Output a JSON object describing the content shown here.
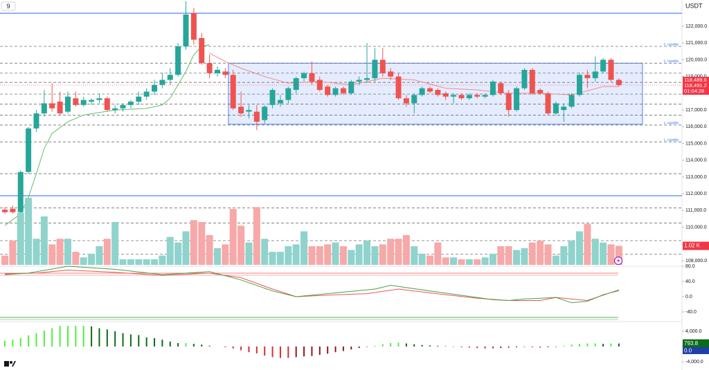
{
  "chart_data": [
    {
      "type": "candlestick",
      "title": "9",
      "currency": "USDT",
      "colors": {
        "up": "#26a69a",
        "down": "#ef5350"
      },
      "ylim": [
        107670,
        123570
      ],
      "yticks": [
        {
          "value": 122000,
          "label": "122,000.0"
        },
        {
          "value": 121000,
          "label": "121,000.0"
        },
        {
          "value": 120000,
          "label": "120,000.0"
        },
        {
          "value": 119000,
          "label": "119,000.0"
        },
        {
          "value": 118000,
          "label": "118,000.0"
        },
        {
          "value": 117000,
          "label": "117,000.0"
        },
        {
          "value": 116000,
          "label": "116,000.0"
        },
        {
          "value": 115000,
          "label": "115,000.0"
        },
        {
          "value": 114000,
          "label": "114,000.0"
        },
        {
          "value": 113000,
          "label": "113,000.0"
        },
        {
          "value": 112000,
          "label": "112,000.0"
        },
        {
          "value": 111000,
          "label": "111,000.0"
        },
        {
          "value": 110000,
          "label": "110,000.0"
        },
        {
          "value": 109000,
          "label": "109,000.0"
        },
        {
          "value": 108000,
          "label": "108,000.0"
        }
      ],
      "candles": [
        [
          111050,
          111200,
          110800,
          110900
        ],
        [
          111100,
          111300,
          110800,
          110900
        ],
        [
          110900,
          113400,
          110700,
          113300
        ],
        [
          113300,
          116000,
          113200,
          115900
        ],
        [
          115900,
          117000,
          115700,
          116800
        ],
        [
          116800,
          118200,
          116600,
          117400
        ],
        [
          117400,
          118600,
          116900,
          117100
        ],
        [
          117500,
          118100,
          116700,
          116800
        ],
        [
          116900,
          118100,
          116800,
          117800
        ],
        [
          117700,
          118100,
          117200,
          117300
        ],
        [
          117300,
          117800,
          117200,
          117600
        ],
        [
          117500,
          117700,
          117300,
          117600
        ],
        [
          117600,
          118000,
          117400,
          117700
        ],
        [
          117700,
          117800,
          116900,
          117000
        ],
        [
          117000,
          117300,
          116800,
          117100
        ],
        [
          117100,
          117400,
          116900,
          117300
        ],
        [
          117300,
          117600,
          117100,
          117500
        ],
        [
          117500,
          118100,
          117300,
          117800
        ],
        [
          117800,
          118300,
          117600,
          118100
        ],
        [
          118100,
          118800,
          117900,
          118500
        ],
        [
          118500,
          119200,
          118300,
          118800
        ],
        [
          118800,
          119500,
          118500,
          119100
        ],
        [
          119100,
          121000,
          119000,
          120800
        ],
        [
          120800,
          123500,
          120600,
          122700
        ],
        [
          122800,
          123100,
          120900,
          121200
        ],
        [
          121300,
          121600,
          119700,
          119800
        ],
        [
          119800,
          120300,
          118900,
          119200
        ],
        [
          119200,
          119600,
          119000,
          119400
        ],
        [
          119300,
          119500,
          118900,
          119100
        ],
        [
          119100,
          119400,
          117000,
          117100
        ],
        [
          117200,
          118100,
          116600,
          116800
        ],
        [
          116900,
          117300,
          116500,
          117000
        ],
        [
          116900,
          117300,
          115800,
          116300
        ],
        [
          116400,
          117300,
          116200,
          117200
        ],
        [
          117300,
          118300,
          117100,
          118200
        ],
        [
          117400,
          117900,
          117200,
          117600
        ],
        [
          117600,
          118400,
          117400,
          118300
        ],
        [
          118200,
          119000,
          118000,
          118900
        ],
        [
          118900,
          119300,
          118700,
          119200
        ],
        [
          119200,
          119900,
          118500,
          118700
        ],
        [
          118800,
          119000,
          118100,
          118200
        ],
        [
          118400,
          118500,
          117800,
          117900
        ],
        [
          117900,
          118400,
          117800,
          118300
        ],
        [
          118300,
          118400,
          117900,
          118000
        ],
        [
          118000,
          118800,
          117900,
          118700
        ],
        [
          118700,
          119000,
          118500,
          118800
        ],
        [
          118800,
          121000,
          118600,
          118900
        ],
        [
          118900,
          120700,
          118700,
          120000
        ],
        [
          120000,
          120700,
          119000,
          119200
        ],
        [
          119300,
          119500,
          118800,
          119000
        ],
        [
          119000,
          119200,
          117600,
          117700
        ],
        [
          117700,
          117900,
          117200,
          117400
        ],
        [
          117400,
          118000,
          116800,
          117900
        ],
        [
          117900,
          118400,
          117800,
          118300
        ],
        [
          118300,
          118400,
          118000,
          118100
        ],
        [
          118200,
          118300,
          117800,
          117900
        ],
        [
          118000,
          118100,
          117600,
          117800
        ],
        [
          117800,
          118000,
          117400,
          117900
        ],
        [
          117900,
          118000,
          117600,
          117700
        ],
        [
          117700,
          118000,
          117600,
          117900
        ],
        [
          117900,
          118000,
          117700,
          117800
        ],
        [
          117800,
          118000,
          117700,
          117900
        ],
        [
          117900,
          118800,
          117800,
          118700
        ],
        [
          118600,
          118700,
          117900,
          118000
        ],
        [
          118000,
          118200,
          116600,
          117000
        ],
        [
          117000,
          118400,
          116900,
          118300
        ],
        [
          118300,
          119500,
          118200,
          119400
        ],
        [
          119400,
          119500,
          117900,
          118000
        ],
        [
          118200,
          118300,
          117900,
          118000
        ],
        [
          118000,
          118100,
          116700,
          116800
        ],
        [
          116800,
          117500,
          116700,
          117400
        ],
        [
          117000,
          117400,
          116300,
          117200
        ],
        [
          117200,
          118000,
          117100,
          117900
        ],
        [
          117900,
          119200,
          117800,
          119100
        ],
        [
          119100,
          119400,
          118300,
          118900
        ],
        [
          118900,
          120200,
          118700,
          119300
        ],
        [
          119300,
          120100,
          119200,
          120000
        ],
        [
          120000,
          120100,
          118700,
          118800
        ],
        [
          118800,
          118900,
          118400,
          118489.6
        ]
      ],
      "blue_lines": [
        122780,
        111880
      ],
      "dashed_levels": [
        119200,
        118650,
        117950,
        117350,
        116700,
        113200,
        111150,
        110250,
        109200,
        108400
      ],
      "levels": [
        {
          "value": 120800,
          "label": "3. Liquidity"
        },
        {
          "value": 119800,
          "label": "2. Liquidity"
        },
        {
          "value": 116100,
          "label": "1. Liquidity"
        },
        {
          "value": 115100,
          "label": "1. Liquidity"
        }
      ],
      "zone": {
        "x": [
          28.4,
          81
        ],
        "y": [
          116150,
          119800
        ]
      },
      "moving_averages": [
        {
          "color": "#f28b82",
          "x": [
            26,
            28,
            30,
            33,
            36,
            40,
            44,
            48,
            52,
            56,
            60,
            64,
            68,
            72,
            76,
            78
          ],
          "values": [
            120400,
            119900,
            119500,
            119000,
            118600,
            118700,
            118500,
            118900,
            118800,
            118300,
            118200,
            118000,
            118000,
            117900,
            118400,
            118400
          ]
        },
        {
          "color": "#66bb6a",
          "x": [
            0,
            2,
            3,
            4,
            5,
            6,
            8,
            10,
            14,
            18,
            20,
            21,
            22,
            23,
            24,
            25,
            26
          ],
          "values": [
            110100,
            110800,
            111800,
            113200,
            114700,
            115600,
            116300,
            116700,
            117000,
            117100,
            117300,
            117700,
            118500,
            119300,
            120300,
            120800,
            120900
          ]
        }
      ],
      "last_price": {
        "value": 118489.6,
        "label": "118,489.6"
      },
      "second_price": {
        "value": 118491.2,
        "label": "118,491.2"
      },
      "countdown": "01:04:28"
    },
    {
      "type": "bar",
      "ylim": [
        0,
        14.2
      ],
      "values": [
        0.5,
        1.3,
        2.8,
        3.6,
        1.4,
        2.6,
        1.1,
        1.4,
        1.4,
        0.7,
        0.4,
        0.6,
        1.0,
        1.4,
        2.3,
        0.3,
        0.3,
        0.3,
        0.3,
        0.3,
        0.5,
        1.5,
        1.2,
        1.8,
        2.4,
        2.3,
        1.6,
        0.9,
        1.1,
        3.0,
        2.1,
        1.2,
        3.1,
        1.4,
        0.7,
        0.7,
        1.0,
        1.1,
        1.8,
        1.0,
        1.0,
        1.1,
        1.2,
        1.0,
        0.8,
        1.1,
        1.3,
        1.0,
        1.1,
        1.4,
        1.4,
        1.6,
        1.0,
        0.6,
        0.5,
        1.2,
        0.4,
        0.4,
        0.3,
        0.3,
        0.3,
        0.4,
        0.6,
        1.0,
        1.0,
        0.8,
        0.9,
        1.2,
        1.3,
        1.1,
        0.5,
        1.0,
        1.3,
        1.8,
        2.2,
        1.4,
        1.2,
        1.1,
        1.02
      ],
      "colors": {
        "up": "#8fd3cc",
        "down": "#f7a8a8",
        "label": "#f23645"
      },
      "last_value_label": "1.02 K"
    },
    {
      "type": "line",
      "ylim": [
        -65.5,
        80
      ],
      "yticks": [
        {
          "value": 80,
          "label": "80.0"
        },
        {
          "value": 40,
          "label": "40.0"
        },
        {
          "value": 0,
          "label": "0.0"
        },
        {
          "value": -40,
          "label": "-40.0"
        }
      ],
      "series": [
        {
          "color": "#ef5350",
          "x": [
            0,
            4,
            8,
            14,
            20,
            26,
            30,
            34,
            37,
            42,
            46,
            50,
            54,
            60,
            64,
            68,
            70,
            74,
            78
          ],
          "values": [
            60,
            62,
            70,
            64,
            56,
            62,
            50,
            20,
            0,
            5,
            8,
            20,
            10,
            -4,
            -10,
            -10,
            -2,
            -10,
            18
          ]
        },
        {
          "color": "#43a047",
          "x": [
            0,
            3,
            8,
            14,
            20,
            26,
            30,
            34,
            37,
            42,
            44,
            47,
            49,
            54,
            60,
            62,
            64,
            66,
            70,
            72,
            74,
            76,
            78
          ],
          "values": [
            58,
            62,
            80,
            72,
            58,
            66,
            44,
            15,
            0,
            10,
            14,
            20,
            30,
            15,
            -2,
            -8,
            -10,
            -6,
            -2,
            -16,
            -12,
            5,
            16
          ]
        }
      ],
      "levels": [
        {
          "value": 61.8,
          "color": "#ef5350"
        },
        {
          "value": 56.4,
          "color": "#ef9a9a"
        },
        {
          "value": -54.5,
          "color": "#43a047"
        },
        {
          "value": -60,
          "color": "#81c784"
        }
      ]
    },
    {
      "type": "bar",
      "ylim": [
        -4360,
        6545
      ],
      "yticks": [
        {
          "value": 4000,
          "label": "4,000.0"
        },
        {
          "value": 0,
          "label": "0.0"
        },
        {
          "value": -4000,
          "label": "-4,000.0"
        }
      ],
      "values": [
        1500,
        1800,
        2200,
        2900,
        3500,
        4200,
        4800,
        5400,
        5400,
        5400,
        5400,
        5300,
        4800,
        4500,
        4000,
        3500,
        3200,
        3000,
        2400,
        2200,
        1800,
        1300,
        900,
        900,
        700,
        500,
        200,
        0,
        -200,
        -500,
        -1000,
        -1500,
        -1800,
        -2400,
        -2800,
        -3000,
        -3000,
        -2800,
        -2600,
        -2500,
        -2200,
        -1900,
        -1500,
        -1200,
        -800,
        -400,
        -100,
        200,
        600,
        900,
        1000,
        800,
        600,
        400,
        300,
        200,
        100,
        -100,
        -200,
        -300,
        -400,
        -500,
        -500,
        -400,
        -300,
        -200,
        -100,
        -200,
        -300,
        -200,
        -100,
        200,
        500,
        700,
        800,
        800,
        700,
        800,
        793.8
      ],
      "colors": {
        "rise_pos": "#4cf03c",
        "fall_pos": "#0b6b1a",
        "fall_neg": "#d32f2f",
        "rise_neg": "#8b1a1a",
        "label": "#0b6b1a"
      },
      "last_value_label": "793.8",
      "signal": {
        "value": 0,
        "label": "0.0",
        "color": "#1e3fa8"
      }
    }
  ]
}
